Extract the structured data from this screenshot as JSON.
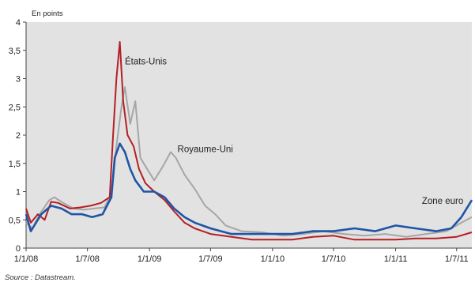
{
  "chart_data": {
    "type": "line",
    "unit_label": "En points",
    "ylim": [
      0,
      4
    ],
    "yticks": [
      {
        "v": 0,
        "label": "0"
      },
      {
        "v": 0.5,
        "label": "0,5"
      },
      {
        "v": 1,
        "label": "1"
      },
      {
        "v": 1.5,
        "label": "1,5"
      },
      {
        "v": 2,
        "label": "2"
      },
      {
        "v": 2.5,
        "label": "2,5"
      },
      {
        "v": 3,
        "label": "3"
      },
      {
        "v": 3.5,
        "label": "3,5"
      },
      {
        "v": 4,
        "label": "4"
      }
    ],
    "xlim": [
      "2008-01-01",
      "2011-08-15"
    ],
    "xticks": [
      {
        "date": "2008-01-01",
        "label": "1/1/08"
      },
      {
        "date": "2008-07-01",
        "label": "1/7/08"
      },
      {
        "date": "2009-01-01",
        "label": "1/1/09"
      },
      {
        "date": "2009-07-01",
        "label": "1/7/09"
      },
      {
        "date": "2010-01-01",
        "label": "1/1/10"
      },
      {
        "date": "2010-07-01",
        "label": "1/7/10"
      },
      {
        "date": "2011-01-01",
        "label": "1/1/11"
      },
      {
        "date": "2011-07-01",
        "label": "1/7/11"
      }
    ],
    "grid": false,
    "series": [
      {
        "name": "Royaume-Uni",
        "color": "#a6a6a6",
        "points": [
          [
            "2008-01-01",
            0.45
          ],
          [
            "2008-01-20",
            0.35
          ],
          [
            "2008-02-10",
            0.6
          ],
          [
            "2008-03-10",
            0.85
          ],
          [
            "2008-03-25",
            0.9
          ],
          [
            "2008-04-20",
            0.8
          ],
          [
            "2008-05-20",
            0.7
          ],
          [
            "2008-06-20",
            0.68
          ],
          [
            "2008-07-20",
            0.7
          ],
          [
            "2008-08-20",
            0.72
          ],
          [
            "2008-09-10",
            0.95
          ],
          [
            "2008-09-25",
            1.8
          ],
          [
            "2008-10-10",
            2.5
          ],
          [
            "2008-10-20",
            2.85
          ],
          [
            "2008-11-05",
            2.2
          ],
          [
            "2008-11-20",
            2.6
          ],
          [
            "2008-12-05",
            1.6
          ],
          [
            "2008-12-20",
            1.45
          ],
          [
            "2009-01-15",
            1.2
          ],
          [
            "2009-02-10",
            1.45
          ],
          [
            "2009-03-05",
            1.7
          ],
          [
            "2009-03-20",
            1.6
          ],
          [
            "2009-04-15",
            1.3
          ],
          [
            "2009-05-15",
            1.05
          ],
          [
            "2009-06-15",
            0.75
          ],
          [
            "2009-07-15",
            0.6
          ],
          [
            "2009-08-15",
            0.4
          ],
          [
            "2009-10-01",
            0.3
          ],
          [
            "2009-12-01",
            0.28
          ],
          [
            "2010-02-01",
            0.22
          ],
          [
            "2010-04-01",
            0.25
          ],
          [
            "2010-06-01",
            0.3
          ],
          [
            "2010-08-01",
            0.25
          ],
          [
            "2010-10-01",
            0.22
          ],
          [
            "2010-12-01",
            0.25
          ],
          [
            "2011-02-01",
            0.2
          ],
          [
            "2011-04-01",
            0.25
          ],
          [
            "2011-06-01",
            0.3
          ],
          [
            "2011-07-15",
            0.45
          ],
          [
            "2011-08-15",
            0.55
          ]
        ]
      },
      {
        "name": "États-Unis",
        "color": "#b51f24",
        "points": [
          [
            "2008-01-01",
            0.7
          ],
          [
            "2008-01-15",
            0.45
          ],
          [
            "2008-02-05",
            0.6
          ],
          [
            "2008-02-25",
            0.5
          ],
          [
            "2008-03-15",
            0.82
          ],
          [
            "2008-04-05",
            0.8
          ],
          [
            "2008-05-10",
            0.7
          ],
          [
            "2008-06-10",
            0.72
          ],
          [
            "2008-07-10",
            0.75
          ],
          [
            "2008-08-10",
            0.8
          ],
          [
            "2008-09-05",
            0.9
          ],
          [
            "2008-09-15",
            2.0
          ],
          [
            "2008-09-25",
            3.0
          ],
          [
            "2008-10-05",
            3.65
          ],
          [
            "2008-10-15",
            2.6
          ],
          [
            "2008-10-28",
            2.0
          ],
          [
            "2008-11-15",
            1.8
          ],
          [
            "2008-12-01",
            1.4
          ],
          [
            "2008-12-20",
            1.15
          ],
          [
            "2009-01-15",
            1.0
          ],
          [
            "2009-02-15",
            0.85
          ],
          [
            "2009-03-15",
            0.65
          ],
          [
            "2009-04-15",
            0.45
          ],
          [
            "2009-05-15",
            0.35
          ],
          [
            "2009-07-01",
            0.25
          ],
          [
            "2009-09-01",
            0.2
          ],
          [
            "2009-11-01",
            0.15
          ],
          [
            "2010-01-01",
            0.15
          ],
          [
            "2010-03-01",
            0.15
          ],
          [
            "2010-05-01",
            0.2
          ],
          [
            "2010-07-01",
            0.22
          ],
          [
            "2010-09-01",
            0.15
          ],
          [
            "2010-11-01",
            0.15
          ],
          [
            "2011-01-01",
            0.15
          ],
          [
            "2011-03-01",
            0.17
          ],
          [
            "2011-05-01",
            0.17
          ],
          [
            "2011-07-01",
            0.2
          ],
          [
            "2011-08-15",
            0.28
          ]
        ]
      },
      {
        "name": "Zone euro",
        "color": "#1f55a5",
        "points": [
          [
            "2008-01-01",
            0.6
          ],
          [
            "2008-01-15",
            0.3
          ],
          [
            "2008-02-15",
            0.6
          ],
          [
            "2008-03-15",
            0.75
          ],
          [
            "2008-04-15",
            0.7
          ],
          [
            "2008-05-15",
            0.6
          ],
          [
            "2008-06-15",
            0.6
          ],
          [
            "2008-07-15",
            0.55
          ],
          [
            "2008-08-15",
            0.6
          ],
          [
            "2008-09-10",
            0.9
          ],
          [
            "2008-09-20",
            1.6
          ],
          [
            "2008-10-05",
            1.85
          ],
          [
            "2008-10-20",
            1.7
          ],
          [
            "2008-11-05",
            1.4
          ],
          [
            "2008-11-20",
            1.2
          ],
          [
            "2008-12-15",
            1.0
          ],
          [
            "2009-01-15",
            1.0
          ],
          [
            "2009-02-15",
            0.9
          ],
          [
            "2009-03-15",
            0.7
          ],
          [
            "2009-04-15",
            0.55
          ],
          [
            "2009-05-15",
            0.45
          ],
          [
            "2009-07-01",
            0.35
          ],
          [
            "2009-09-01",
            0.25
          ],
          [
            "2009-11-01",
            0.25
          ],
          [
            "2010-01-01",
            0.25
          ],
          [
            "2010-03-01",
            0.25
          ],
          [
            "2010-05-01",
            0.3
          ],
          [
            "2010-07-01",
            0.3
          ],
          [
            "2010-09-01",
            0.35
          ],
          [
            "2010-11-01",
            0.3
          ],
          [
            "2011-01-01",
            0.4
          ],
          [
            "2011-03-01",
            0.35
          ],
          [
            "2011-05-01",
            0.3
          ],
          [
            "2011-06-15",
            0.35
          ],
          [
            "2011-07-15",
            0.55
          ],
          [
            "2011-08-15",
            0.85
          ]
        ]
      }
    ],
    "annotations": [
      {
        "text": "États-Unis",
        "date": "2008-10-20",
        "y": 3.25
      },
      {
        "text": "Royaume-Uni",
        "date": "2009-03-25",
        "y": 1.7
      },
      {
        "text": "Zone euro",
        "date": "2011-03-20",
        "y": 0.78
      }
    ],
    "source": "Source : Datastream."
  }
}
